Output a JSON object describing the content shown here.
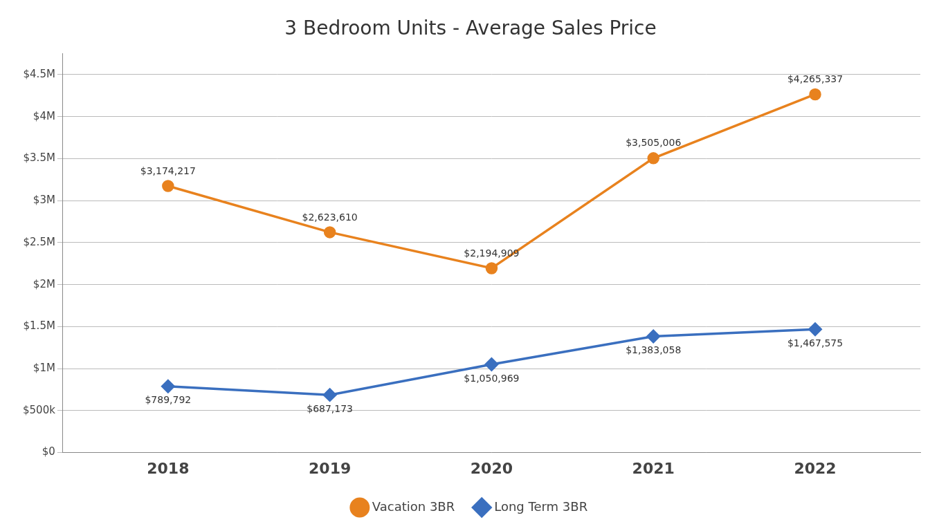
{
  "chart_data": {
    "type": "line",
    "title": "3 Bedroom Units - Average Sales Price",
    "x": [
      2018,
      2019,
      2020,
      2021,
      2022
    ],
    "xlim": [
      2017.35,
      2022.65
    ],
    "xticks": [
      2018,
      2019,
      2020,
      2021,
      2022
    ],
    "ylim": [
      0,
      4750000
    ],
    "yticks": [
      {
        "value": 0,
        "label": "$0"
      },
      {
        "value": 500000,
        "label": "$500k"
      },
      {
        "value": 1000000,
        "label": "$1M"
      },
      {
        "value": 1500000,
        "label": "$1.5M"
      },
      {
        "value": 2000000,
        "label": "$2M"
      },
      {
        "value": 2500000,
        "label": "$2.5M"
      },
      {
        "value": 3000000,
        "label": "$3M"
      },
      {
        "value": 3500000,
        "label": "$3.5M"
      },
      {
        "value": 4000000,
        "label": "$4M"
      },
      {
        "value": 4500000,
        "label": "$4.5M"
      }
    ],
    "grid": "y",
    "legend": "bottom",
    "data_labels": true,
    "series": [
      {
        "name": "Vacation 3BR",
        "color": "#E8821E",
        "marker": "circle",
        "values": [
          3174217,
          2623610,
          2194909,
          3505006,
          4265337
        ],
        "value_labels": [
          "$3,174,217",
          "$2,623,610",
          "$2,194,909",
          "$3,505,006",
          "$4,265,337"
        ]
      },
      {
        "name": "Long Term 3BR",
        "color": "#3A6FBF",
        "marker": "diamond",
        "values": [
          789792,
          687173,
          1050969,
          1383058,
          1467575
        ],
        "value_labels": [
          "$789,792",
          "$687,173",
          "$1,050,969",
          "$1,383,058",
          "$1,467,575"
        ]
      }
    ]
  }
}
